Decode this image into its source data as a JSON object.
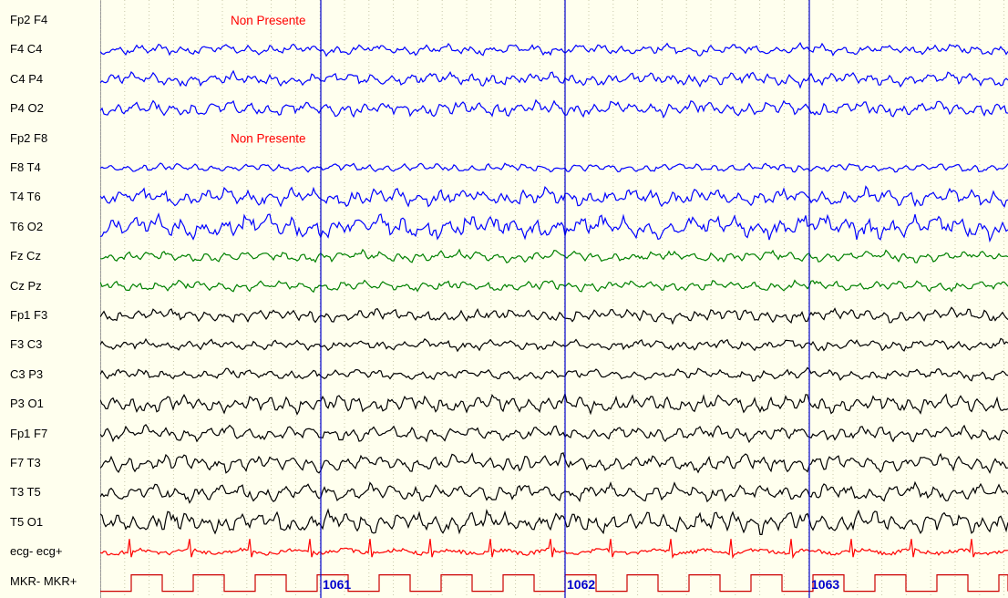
{
  "app": {
    "colors": {
      "background": "#ffffee",
      "grid": "#c8c8a8",
      "marker": "#0000cc",
      "not_present": "#ff0000"
    }
  },
  "channels": [
    {
      "label": "Fp2 F4",
      "color": "#0000ff",
      "present": false
    },
    {
      "label": "F4 C4",
      "color": "#0000ff",
      "present": true,
      "amp": 5
    },
    {
      "label": "C4 P4",
      "color": "#0000ff",
      "present": true,
      "amp": 6
    },
    {
      "label": "P4 O2",
      "color": "#0000ff",
      "present": true,
      "amp": 7
    },
    {
      "label": "Fp2 F8",
      "color": "#0000ff",
      "present": false
    },
    {
      "label": "F8 T4",
      "color": "#0000ff",
      "present": true,
      "amp": 4
    },
    {
      "label": "T4 T6",
      "color": "#0000ff",
      "present": true,
      "amp": 8
    },
    {
      "label": "T6 O2",
      "color": "#0000ff",
      "present": true,
      "amp": 11
    },
    {
      "label": "Fz Cz",
      "color": "#008000",
      "present": true,
      "amp": 5
    },
    {
      "label": "Cz Pz",
      "color": "#008000",
      "present": true,
      "amp": 5
    },
    {
      "label": "Fp1 F3",
      "color": "#000000",
      "present": true,
      "amp": 6
    },
    {
      "label": "F3 C3",
      "color": "#000000",
      "present": true,
      "amp": 5
    },
    {
      "label": "C3 P3",
      "color": "#000000",
      "present": true,
      "amp": 5
    },
    {
      "label": "P3 O1",
      "color": "#000000",
      "present": true,
      "amp": 8
    },
    {
      "label": "Fp1 F7",
      "color": "#000000",
      "present": true,
      "amp": 7
    },
    {
      "label": "F7 T3",
      "color": "#000000",
      "present": true,
      "amp": 8
    },
    {
      "label": "T3 T5",
      "color": "#000000",
      "present": true,
      "amp": 8
    },
    {
      "label": "T5 O1",
      "color": "#000000",
      "present": true,
      "amp": 10
    },
    {
      "label": "ecg- ecg+",
      "color": "#ff0000",
      "present": true,
      "type": "ecg"
    },
    {
      "label": "MKR- MKR+",
      "color": "#cc0000",
      "present": true,
      "type": "marker"
    }
  ],
  "not_present_text": "Non Presente",
  "seconds": [
    {
      "label": "1061"
    },
    {
      "label": "1062"
    },
    {
      "label": "1063"
    }
  ]
}
